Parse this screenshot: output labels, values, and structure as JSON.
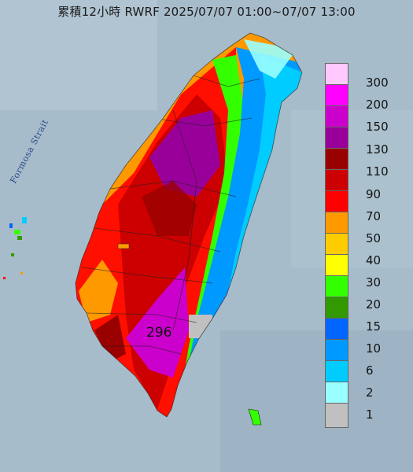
{
  "title": "累積12小時 RWRF 2025/07/07 01:00~07/07 13:00",
  "strait_label": "Formosa Strait",
  "max_value": "296",
  "legend": [
    {
      "label": "300",
      "color": "#ffc8ff"
    },
    {
      "label": "200",
      "color": "#ff00ff"
    },
    {
      "label": "150",
      "color": "#cc00cc"
    },
    {
      "label": "130",
      "color": "#990099"
    },
    {
      "label": "110",
      "color": "#990000"
    },
    {
      "label": "90",
      "color": "#cc0000"
    },
    {
      "label": "70",
      "color": "#ff0000"
    },
    {
      "label": "50",
      "color": "#ff9900"
    },
    {
      "label": "40",
      "color": "#ffcc00"
    },
    {
      "label": "30",
      "color": "#ffff00"
    },
    {
      "label": "20",
      "color": "#33ff00"
    },
    {
      "label": "15",
      "color": "#339900"
    },
    {
      "label": "10",
      "color": "#0066ff"
    },
    {
      "label": "6",
      "color": "#0099ff"
    },
    {
      "label": "2",
      "color": "#00ccff"
    },
    {
      "label": "1",
      "color": "#99ffff"
    },
    {
      "label": "",
      "color": "#c0c0c0"
    }
  ]
}
